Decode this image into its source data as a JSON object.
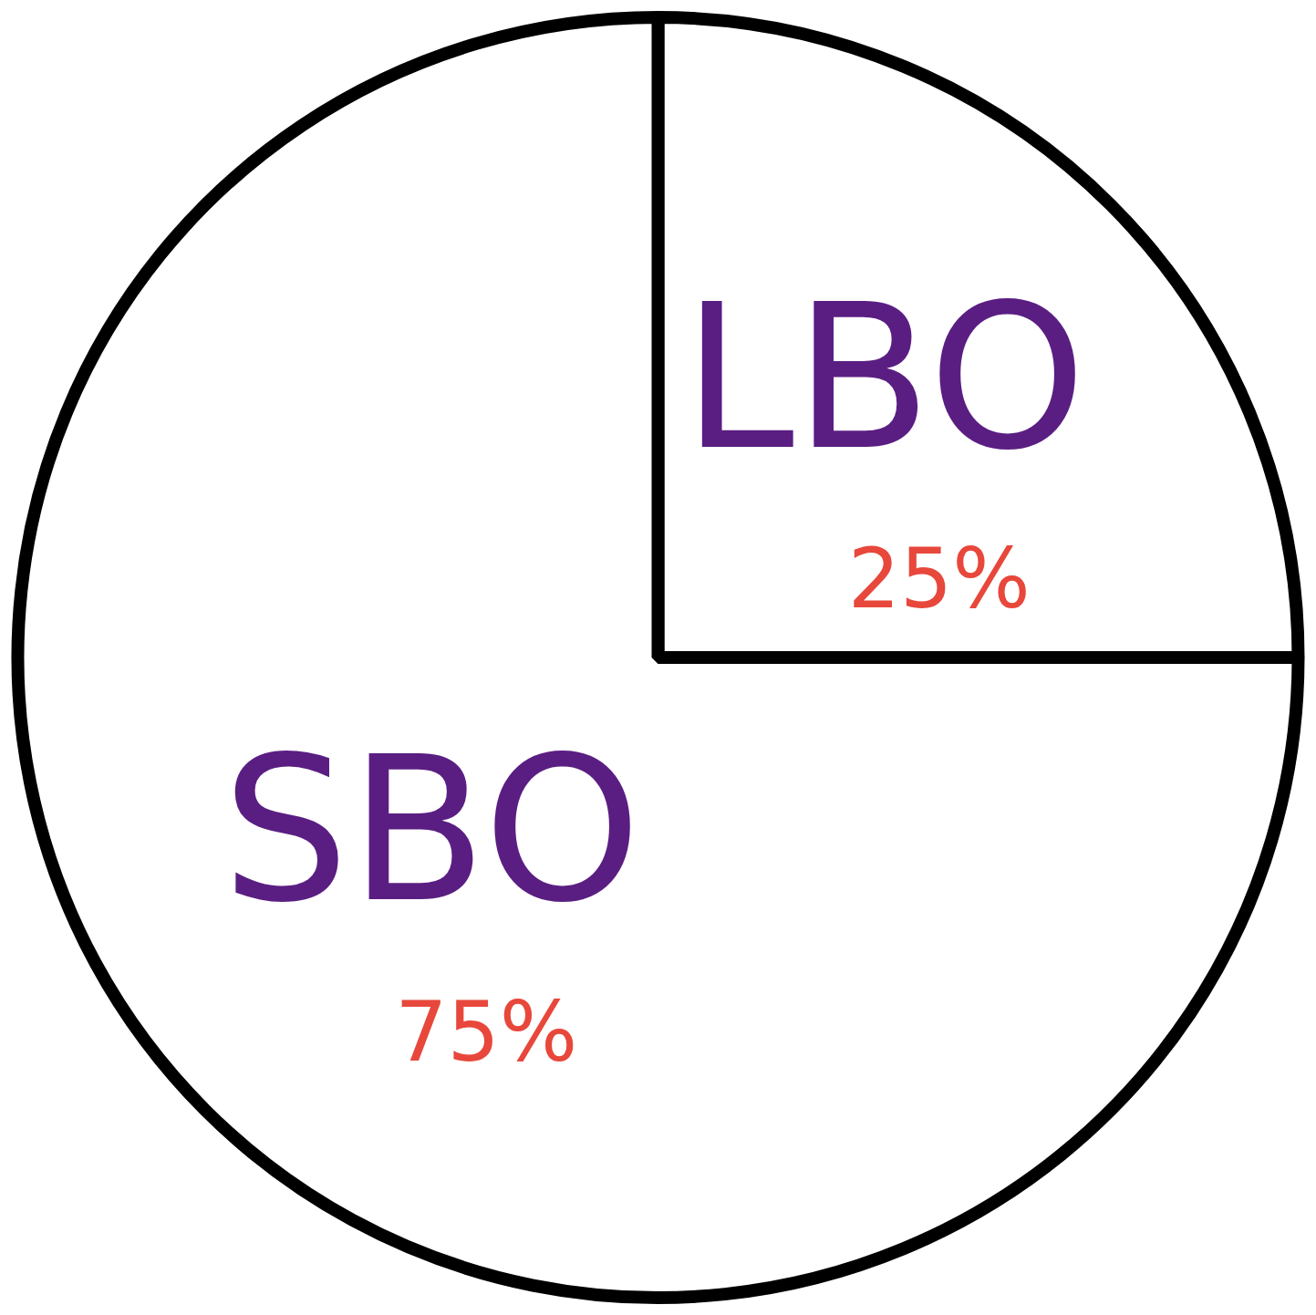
{
  "chart_data": {
    "type": "pie",
    "categories": [
      "LBO",
      "SBO"
    ],
    "values": [
      25,
      75
    ],
    "colors": [
      "#ffffff",
      "#ffffff"
    ],
    "value_labels": [
      "25%",
      "75%"
    ]
  }
}
